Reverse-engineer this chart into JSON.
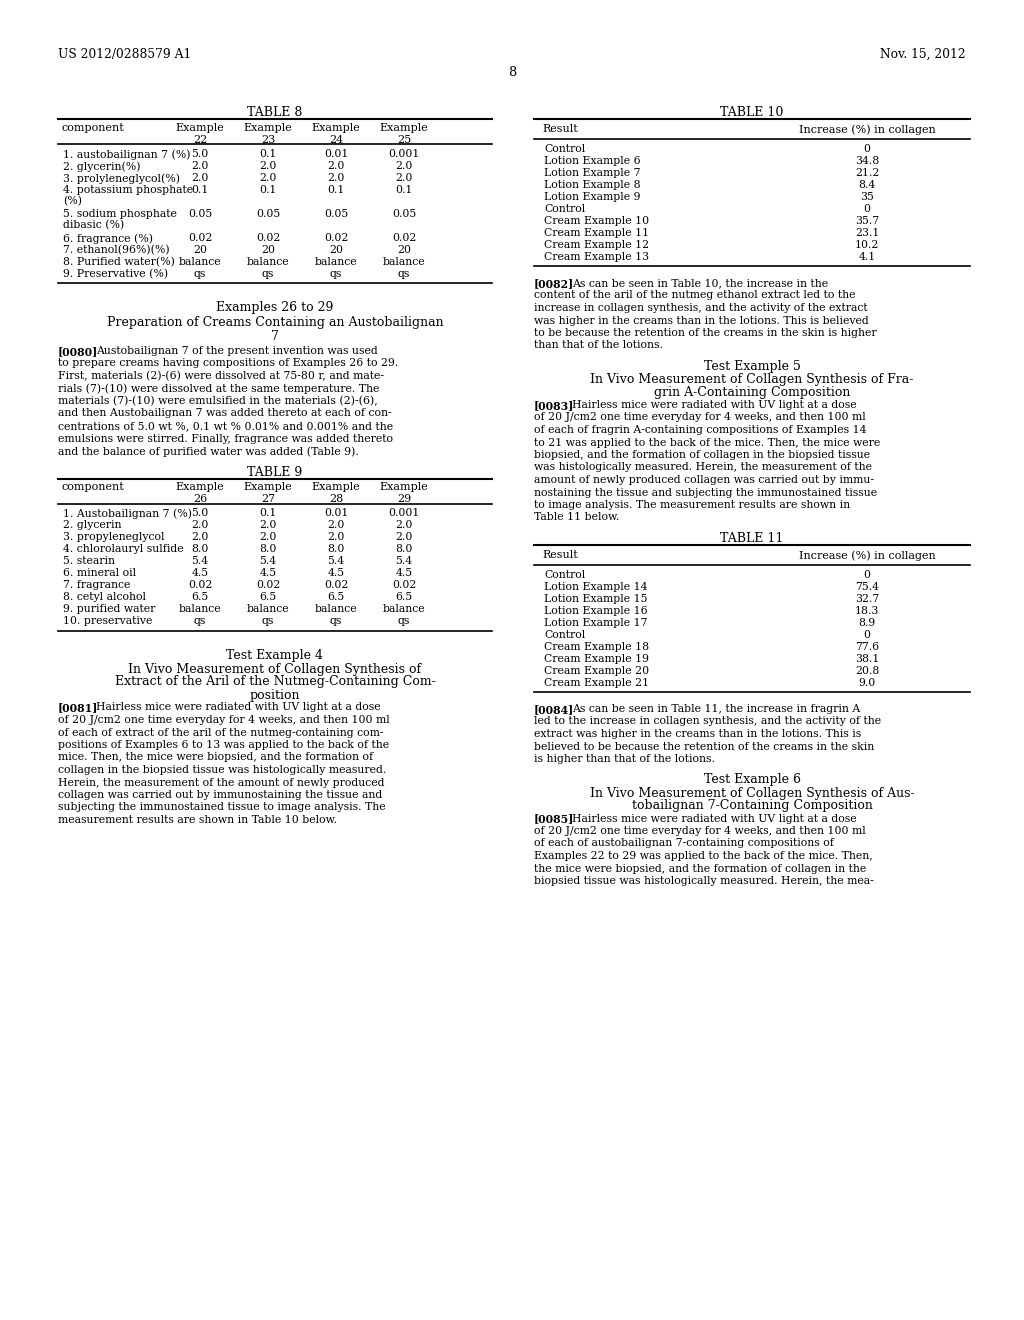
{
  "header_left": "US 2012/0288579 A1",
  "header_right": "Nov. 15, 2012",
  "page_number": "8",
  "background_color": "#ffffff",
  "table8_title": "TABLE 8",
  "table8_col_header": "component",
  "table8_col1": "Example\n22",
  "table8_col2": "Example\n23",
  "table8_col3": "Example\n24",
  "table8_col4": "Example\n25",
  "table8_rows": [
    [
      "1. austobailignan 7 (%)",
      "5.0",
      "0.1",
      "0.01",
      "0.001"
    ],
    [
      "2. glycerin(%)",
      "2.0",
      "2.0",
      "2.0",
      "2.0"
    ],
    [
      "3. prolyleneglycol(%)",
      "2.0",
      "2.0",
      "2.0",
      "2.0"
    ],
    [
      "4. potassium phosphate\n(%)",
      "0.1",
      "0.1",
      "0.1",
      "0.1"
    ],
    [
      "5. sodium phosphate\ndibasic (%)",
      "0.05",
      "0.05",
      "0.05",
      "0.05"
    ],
    [
      "6. fragrance (%)",
      "0.02",
      "0.02",
      "0.02",
      "0.02"
    ],
    [
      "7. ethanol(96%)(%)",
      "20",
      "20",
      "20",
      "20"
    ],
    [
      "8. Purified water(%)",
      "balance",
      "balance",
      "balance",
      "balance"
    ],
    [
      "9. Preservative (%)",
      "qs",
      "qs",
      "qs",
      "qs"
    ]
  ],
  "examples_26_29_title": "Examples 26 to 29",
  "examples_26_29_subtitle1": "Preparation of Creams Containing an Austobailignan",
  "examples_26_29_subtitle2": "7",
  "para_0080_tag": "[0080]",
  "para_0080_body": "Austobailignan 7 of the present invention was used to prepare creams having compositions of Examples 26 to 29. First, materials (2)-(6) were dissolved at 75-80 r, and mate-rials (7)-(10) were dissolved at the same temperature. The materials (7)-(10) were emulsified in the materials (2)-(6), and then Austobailignan 7 was added thereto at each of con-centrations of 5.0 wt %, 0.1 wt % 0.01% and 0.001% and the emulsions were stirred. Finally, fragrance was added thereto and the balance of purified water was added (Table 9).",
  "table9_title": "TABLE 9",
  "table9_col_header": "component",
  "table9_col1": "Example\n26",
  "table9_col2": "Example\n27",
  "table9_col3": "Example\n28",
  "table9_col4": "Example\n29",
  "table9_rows": [
    [
      "1. Austobailignan 7 (%)",
      "5.0",
      "0.1",
      "0.01",
      "0.001"
    ],
    [
      "2. glycerin",
      "2.0",
      "2.0",
      "2.0",
      "2.0"
    ],
    [
      "3. propyleneglycol",
      "2.0",
      "2.0",
      "2.0",
      "2.0"
    ],
    [
      "4. chlorolauryl sulfide",
      "8.0",
      "8.0",
      "8.0",
      "8.0"
    ],
    [
      "5. stearin",
      "5.4",
      "5.4",
      "5.4",
      "5.4"
    ],
    [
      "6. mineral oil",
      "4.5",
      "4.5",
      "4.5",
      "4.5"
    ],
    [
      "7. fragrance",
      "0.02",
      "0.02",
      "0.02",
      "0.02"
    ],
    [
      "8. cetyl alcohol",
      "6.5",
      "6.5",
      "6.5",
      "6.5"
    ],
    [
      "9. purified water",
      "balance",
      "balance",
      "balance",
      "balance"
    ],
    [
      "10. preservative",
      "qs",
      "qs",
      "qs",
      "qs"
    ]
  ],
  "test_example4_title": "Test Example 4",
  "test_example4_sub1": "In Vivo Measurement of Collagen Synthesis of",
  "test_example4_sub2": "Extract of the Aril of the Nutmeg-Containing Com-",
  "test_example4_sub3": "position",
  "para_0081_tag": "[0081]",
  "para_0081_lines": [
    "Hairless mice were radiated with UV light at a dose",
    "of 20 J/cm2 one time everyday for 4 weeks, and then 100 ml",
    "of each of extract of the aril of the nutmeg-containing com-",
    "positions of Examples 6 to 13 was applied to the back of the",
    "mice. Then, the mice were biopsied, and the formation of",
    "collagen in the biopsied tissue was histologically measured.",
    "Herein, the measurement of the amount of newly produced",
    "collagen was carried out by immunostaining the tissue and",
    "subjecting the immunostained tissue to image analysis. The",
    "measurement results are shown in Table 10 below."
  ],
  "table10_title": "TABLE 10",
  "table10_col1": "Result",
  "table10_col2": "Increase (%) in collagen",
  "table10_rows": [
    [
      "Control",
      "0"
    ],
    [
      "Lotion Example 6",
      "34.8"
    ],
    [
      "Lotion Example 7",
      "21.2"
    ],
    [
      "Lotion Example 8",
      "8.4"
    ],
    [
      "Lotion Example 9",
      "35"
    ],
    [
      "Control",
      "0"
    ],
    [
      "Cream Example 10",
      "35.7"
    ],
    [
      "Cream Example 11",
      "23.1"
    ],
    [
      "Cream Example 12",
      "10.2"
    ],
    [
      "Cream Example 13",
      "4.1"
    ]
  ],
  "para_0082_tag": "[0082]",
  "para_0082_lines": [
    "As can be seen in Table 10, the increase in the",
    "content of the aril of the nutmeg ethanol extract led to the",
    "increase in collagen synthesis, and the activity of the extract",
    "was higher in the creams than in the lotions. This is believed",
    "to be because the retention of the creams in the skin is higher",
    "than that of the lotions."
  ],
  "test_example5_title": "Test Example 5",
  "test_example5_sub1": "In Vivo Measurement of Collagen Synthesis of Fra-",
  "test_example5_sub2": "grin A-Containing Composition",
  "para_0083_tag": "[0083]",
  "para_0083_lines": [
    "Hairless mice were radiated with UV light at a dose",
    "of 20 J/cm2 one time everyday for 4 weeks, and then 100 ml",
    "of each of fragrin A-containing compositions of Examples 14",
    "to 21 was applied to the back of the mice. Then, the mice were",
    "biopsied, and the formation of collagen in the biopsied tissue",
    "was histologically measured. Herein, the measurement of the",
    "amount of newly produced collagen was carried out by immu-",
    "nostaining the tissue and subjecting the immunostained tissue",
    "to image analysis. The measurement results are shown in",
    "Table 11 below."
  ],
  "table11_title": "TABLE 11",
  "table11_col1": "Result",
  "table11_col2": "Increase (%) in collagen",
  "table11_rows": [
    [
      "Control",
      "0"
    ],
    [
      "Lotion Example 14",
      "75.4"
    ],
    [
      "Lotion Example 15",
      "32.7"
    ],
    [
      "Lotion Example 16",
      "18.3"
    ],
    [
      "Lotion Example 17",
      "8.9"
    ],
    [
      "Control",
      "0"
    ],
    [
      "Cream Example 18",
      "77.6"
    ],
    [
      "Cream Example 19",
      "38.1"
    ],
    [
      "Cream Example 20",
      "20.8"
    ],
    [
      "Cream Example 21",
      "9.0"
    ]
  ],
  "para_0084_tag": "[0084]",
  "para_0084_lines": [
    "As can be seen in Table 11, the increase in fragrin A",
    "led to the increase in collagen synthesis, and the activity of the",
    "extract was higher in the creams than in the lotions. This is",
    "believed to be because the retention of the creams in the skin",
    "is higher than that of the lotions."
  ],
  "test_example6_title": "Test Example 6",
  "test_example6_sub1": "In Vivo Measurement of Collagen Synthesis of Aus-",
  "test_example6_sub2": "tobailignan 7-Containing Composition",
  "para_0085_tag": "[0085]",
  "para_0085_lines": [
    "Hairless mice were radiated with UV light at a dose",
    "of 20 J/cm2 one time everyday for 4 weeks, and then 100 ml",
    "of each of austobailignan 7-containing compositions of",
    "Examples 22 to 29 was applied to the back of the mice. Then,",
    "the mice were biopsied, and the formation of collagen in the",
    "biopsied tissue was histologically measured. Herein, the mea-"
  ]
}
